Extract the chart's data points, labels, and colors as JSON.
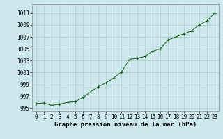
{
  "x": [
    0,
    1,
    2,
    3,
    4,
    5,
    6,
    7,
    8,
    9,
    10,
    11,
    12,
    13,
    14,
    15,
    16,
    17,
    18,
    19,
    20,
    21,
    22,
    23
  ],
  "y": [
    995.8,
    995.9,
    995.5,
    995.7,
    996.0,
    996.1,
    996.8,
    997.8,
    998.6,
    999.3,
    1000.1,
    1001.1,
    1003.2,
    1003.4,
    1003.7,
    1004.6,
    1005.0,
    1006.5,
    1007.0,
    1007.5,
    1008.0,
    1009.0,
    1009.7,
    1011.0
  ],
  "xlim": [
    -0.5,
    23.5
  ],
  "ylim": [
    994.5,
    1012.5
  ],
  "yticks": [
    995,
    997,
    999,
    1001,
    1003,
    1005,
    1007,
    1009,
    1011
  ],
  "xticks": [
    0,
    1,
    2,
    3,
    4,
    5,
    6,
    7,
    8,
    9,
    10,
    11,
    12,
    13,
    14,
    15,
    16,
    17,
    18,
    19,
    20,
    21,
    22,
    23
  ],
  "line_color": "#1a5c1a",
  "marker_color": "#1a5c1a",
  "bg_color": "#cce8ec",
  "grid_color": "#aacccc",
  "xlabel": "Graphe pression niveau de la mer (hPa)",
  "xlabel_fontsize": 6.5,
  "tick_fontsize": 5.5
}
